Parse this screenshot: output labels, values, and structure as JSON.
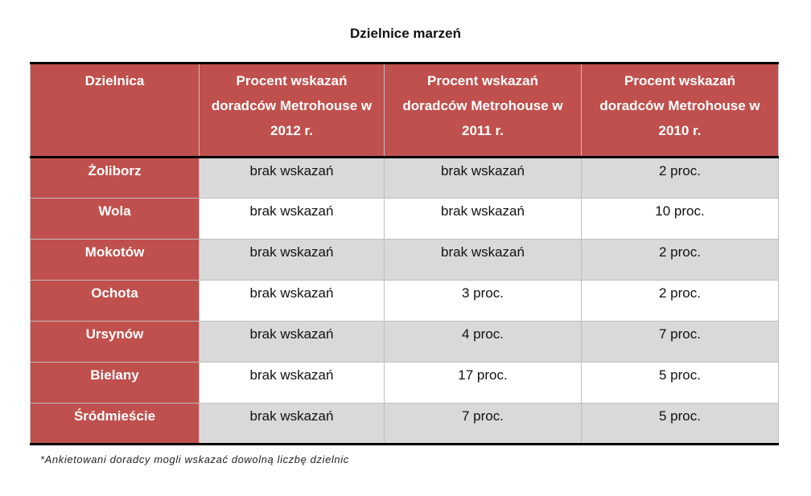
{
  "title": "Dzielnice marzeń",
  "headers": [
    "Dzielnica",
    "Procent wskazań doradców Metrohouse w 2012 r.",
    "Procent wskazań doradców Metrohouse w 2011 r.",
    "Procent wskazań doradców Metrohouse w 2010 r."
  ],
  "rows": [
    [
      "Żoliborz",
      "brak wskazań",
      "brak wskazań",
      "2 proc."
    ],
    [
      "Wola",
      "brak wskazań",
      "brak wskazań",
      "10 proc."
    ],
    [
      "Mokotów",
      "brak wskazań",
      "brak wskazań",
      "2 proc."
    ],
    [
      "Ochota",
      "brak wskazań",
      "3 proc.",
      "2 proc."
    ],
    [
      "Ursynów",
      "brak wskazań",
      "4 proc.",
      "7 proc."
    ],
    [
      "Bielany",
      "brak wskazań",
      "17 proc.",
      "5 proc."
    ],
    [
      "Śródmieście",
      "brak wskazań",
      "7 proc.",
      "5 proc."
    ]
  ],
  "footnote": "*Ankietowani doradcy mogli wskazać dowolną liczbę dzielnic",
  "colors": {
    "header": "#C0504D",
    "stripe": "#D9D9D9"
  }
}
